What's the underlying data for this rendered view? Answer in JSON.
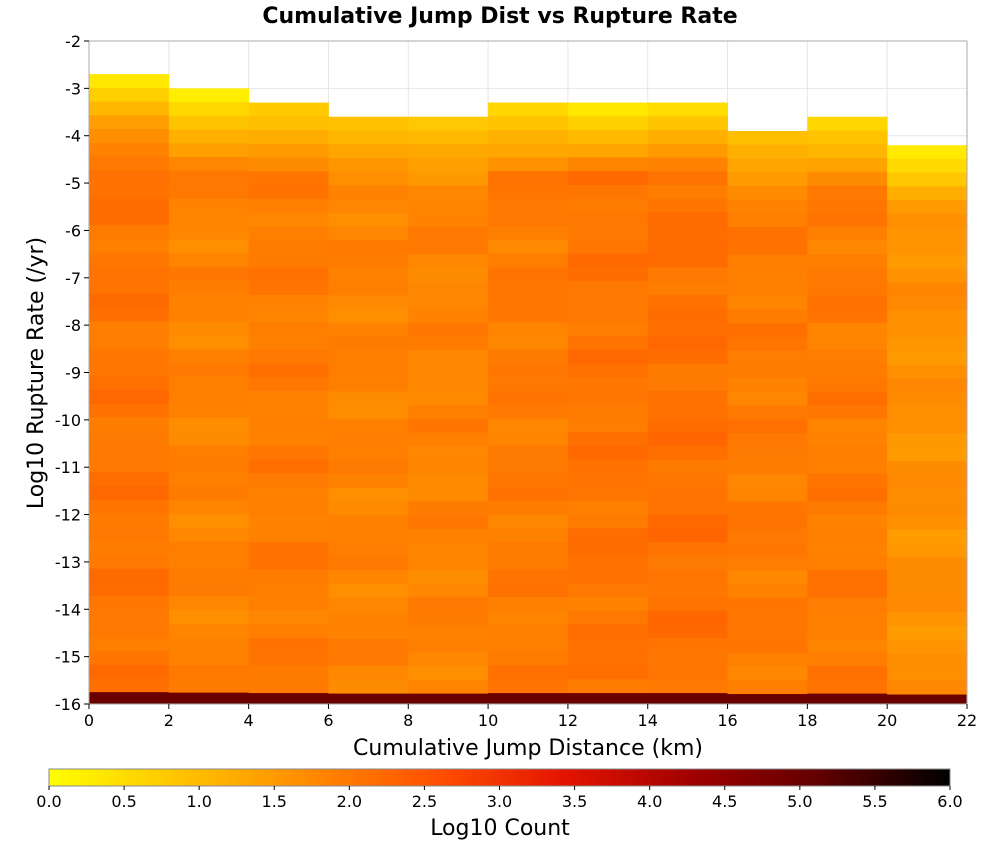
{
  "chart_data": {
    "type": "heatmap",
    "title": "Cumulative Jump Dist vs Rupture Rate",
    "xlabel": "Cumulative Jump Distance (km)",
    "ylabel": "Log10 Rupture Rate (/yr)",
    "xlim": [
      0,
      22
    ],
    "ylim": [
      -16,
      -2
    ],
    "x_ticks": [
      "0",
      "2",
      "4",
      "6",
      "8",
      "10",
      "12",
      "14",
      "16",
      "18",
      "20",
      "22"
    ],
    "y_ticks": [
      "-2",
      "-3",
      "-4",
      "-5",
      "-6",
      "-7",
      "-8",
      "-9",
      "-10",
      "-11",
      "-12",
      "-13",
      "-14",
      "-15",
      "-16"
    ],
    "x_bin_width": 2,
    "y_bin_height": 0.29,
    "x_bin_starts": [
      0,
      2,
      4,
      6,
      8,
      10,
      12,
      14,
      16,
      18,
      20
    ],
    "bins_top": [
      -2.7,
      -3.0,
      -3.3,
      -3.6,
      -3.6,
      -3.3,
      -3.3,
      -3.3,
      -3.9,
      -3.6,
      -4.2
    ],
    "bins_bottom": -16,
    "grid": true,
    "colorbar": {
      "label": "Log10 Count",
      "range": [
        0,
        6
      ],
      "ticks": [
        "0.0",
        "0.5",
        "1.0",
        "1.5",
        "2.0",
        "2.5",
        "3.0",
        "3.5",
        "4.0",
        "4.5",
        "5.0",
        "5.5",
        "6.0"
      ],
      "stops": [
        "#ffff00",
        "#ffc400",
        "#ff8c00",
        "#ff5000",
        "#e41400",
        "#a00000",
        "#600000",
        "#000000"
      ]
    },
    "value_profile": {
      "top_values": [
        0.35,
        0.25,
        0.75,
        0.9,
        0.8,
        0.6,
        0.35,
        0.5,
        0.95,
        0.6,
        0.3
      ],
      "body_values": [
        2.05,
        1.85,
        1.95,
        1.85,
        1.85,
        1.95,
        2.05,
        2.1,
        1.95,
        1.95,
        1.65
      ],
      "bottom_row_value": 5.0
    }
  }
}
